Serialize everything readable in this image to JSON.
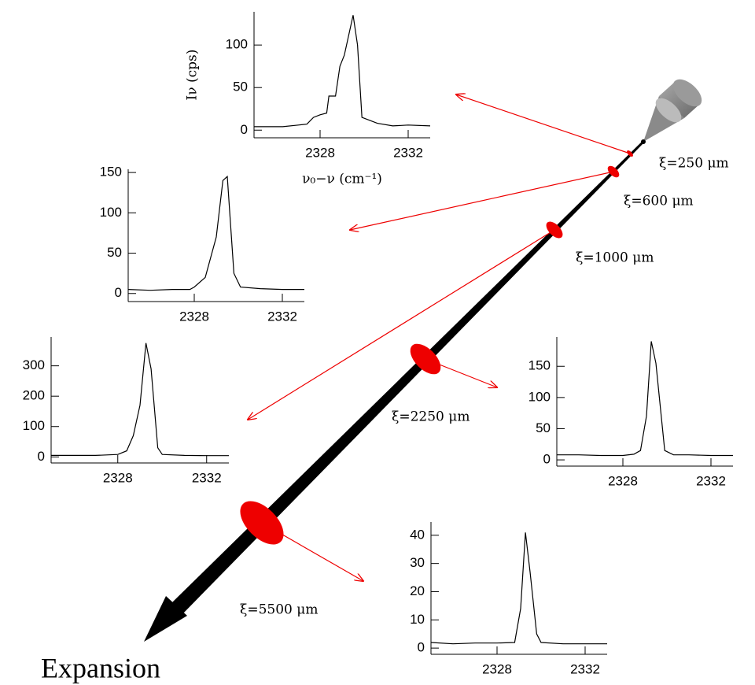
{
  "chart_data": [
    {
      "type": "line",
      "annotation": "ξ=250 μm",
      "ylabel": "Iν (cps)",
      "xlabel": "ν₀−ν (cm⁻¹)",
      "color": "#000000",
      "x": [
        2325,
        2326.3,
        2327.4,
        2327.7,
        2328,
        2328.3,
        2328.4,
        2328.7,
        2328.9,
        2329.1,
        2329.5,
        2329.7,
        2329.9,
        2330.6,
        2331.3,
        2332,
        2333
      ],
      "values": [
        4,
        4,
        7,
        15,
        18,
        20,
        40,
        40,
        75,
        88,
        135,
        100,
        15,
        8,
        5,
        6,
        5
      ],
      "xlim": [
        2325,
        2333
      ],
      "xticks": [
        2328,
        2332
      ],
      "ylim": [
        -9,
        139
      ],
      "yticks": [
        0,
        50,
        100
      ]
    },
    {
      "type": "line",
      "annotation": "ξ=600 μm",
      "color": "#000000",
      "x": [
        2325,
        2326,
        2327,
        2327.8,
        2328,
        2328.5,
        2329,
        2329.3,
        2329.5,
        2329.8,
        2330.1,
        2331,
        2332,
        2333
      ],
      "values": [
        5,
        4,
        5,
        5,
        8,
        20,
        70,
        140,
        145,
        25,
        8,
        6,
        5,
        5
      ],
      "xlim": [
        2325,
        2333
      ],
      "xticks": [
        2328,
        2332
      ],
      "ylim": [
        -10,
        154
      ],
      "yticks": [
        0,
        50,
        100,
        150
      ]
    },
    {
      "type": "line",
      "annotation": "ξ=1000 μm",
      "color": "#000000",
      "x": [
        2325,
        2326,
        2327,
        2328,
        2328.4,
        2328.7,
        2329,
        2329.27,
        2329.5,
        2329.8,
        2330,
        2331,
        2332,
        2333
      ],
      "values": [
        5,
        5,
        5,
        8,
        20,
        70,
        170,
        375,
        290,
        30,
        8,
        5,
        4,
        4
      ],
      "xlim": [
        2325,
        2333
      ],
      "xticks": [
        2328,
        2332
      ],
      "ylim": [
        -20,
        395
      ],
      "yticks": [
        0,
        100,
        200,
        300
      ]
    },
    {
      "type": "line",
      "annotation": "ξ=2250 μm",
      "color": "#000000",
      "x": [
        2325,
        2326,
        2327,
        2328,
        2328.5,
        2328.8,
        2329.07,
        2329.29,
        2329.5,
        2329.9,
        2330.3,
        2331,
        2332,
        2333
      ],
      "values": [
        8,
        8,
        7,
        7,
        9,
        15,
        70,
        190,
        155,
        15,
        8,
        8,
        7,
        7
      ],
      "xlim": [
        2325,
        2333
      ],
      "xticks": [
        2328,
        2332
      ],
      "ylim": [
        -10,
        197
      ],
      "yticks": [
        0,
        50,
        100,
        150
      ]
    },
    {
      "type": "line",
      "annotation": "ξ=5500 μm",
      "color": "#000000",
      "x": [
        2325,
        2326,
        2327,
        2328,
        2328.8,
        2329.07,
        2329.29,
        2329.5,
        2329.8,
        2330,
        2331,
        2332,
        2333
      ],
      "values": [
        2,
        1.5,
        1.8,
        1.8,
        2,
        14,
        41,
        27,
        5,
        2,
        1.5,
        1.5,
        1.5
      ],
      "xlim": [
        2325,
        2333
      ],
      "xticks": [
        2328,
        2332
      ],
      "ylim": [
        -2.2,
        44.7
      ],
      "yticks": [
        0,
        10,
        20,
        30,
        40
      ]
    }
  ],
  "arrow_label": "Expansion"
}
